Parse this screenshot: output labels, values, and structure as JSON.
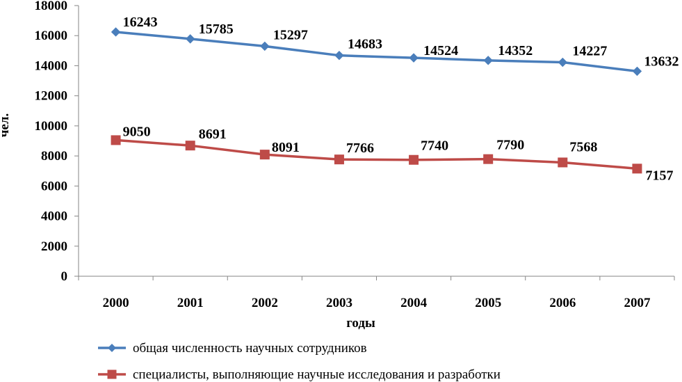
{
  "chart_data": {
    "type": "line",
    "categories": [
      "2000",
      "2001",
      "2002",
      "2003",
      "2004",
      "2005",
      "2006",
      "2007"
    ],
    "series": [
      {
        "name": "общая численность научных сотрудников",
        "values": [
          16243,
          15785,
          15297,
          14683,
          14524,
          14352,
          14227,
          13632
        ],
        "labels": [
          "16243",
          "15785",
          "15297",
          "14683",
          "14524",
          "14352",
          "14227",
          "13632"
        ],
        "color": "#4a7ebb",
        "marker": "diamond"
      },
      {
        "name": "специалисты, выполняющие научные исследования и разработки",
        "values": [
          9050,
          8691,
          8091,
          7766,
          7740,
          7790,
          7568,
          7157
        ],
        "labels": [
          "9050",
          "8691",
          "8091",
          "7766",
          "7740",
          "7790",
          "7568",
          "7157"
        ],
        "color": "#be4b48",
        "marker": "square"
      }
    ],
    "xlabel": "годы",
    "ylabel": "чел.",
    "ylim": [
      0,
      18000
    ],
    "yticks": [
      "0",
      "2000",
      "4000",
      "6000",
      "8000",
      "10000",
      "12000",
      "14000",
      "16000",
      "18000"
    ],
    "grid": false,
    "legend": "bottom"
  }
}
